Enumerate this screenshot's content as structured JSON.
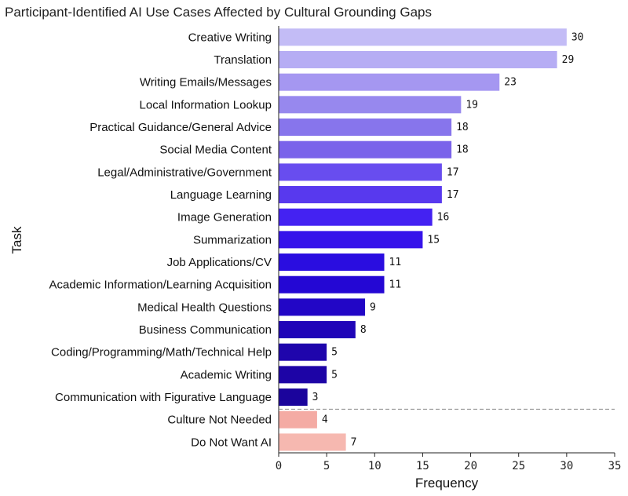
{
  "chart_data": {
    "type": "bar",
    "orientation": "horizontal",
    "title": "Participant-Identified AI Use Cases Affected by Cultural Grounding Gaps",
    "xlabel": "Frequency",
    "ylabel": "Task",
    "xlim": [
      0,
      35
    ],
    "xticks": [
      0,
      5,
      10,
      15,
      20,
      25,
      30,
      35
    ],
    "grid": false,
    "categories": [
      "Creative Writing",
      "Translation",
      "Writing Emails/Messages",
      "Local Information Lookup",
      "Practical Guidance/General Advice",
      "Social Media Content",
      "Legal/Administrative/Government",
      "Language Learning",
      "Image Generation",
      "Summarization",
      "Job Applications/CV",
      "Academic Information/Learning Acquisition",
      "Medical Health Questions",
      "Business Communication",
      "Coding/Programming/Math/Technical Help",
      "Academic Writing",
      "Communication with Figurative Language",
      "Culture Not Needed",
      "Do Not Want AI"
    ],
    "values": [
      30,
      29,
      23,
      19,
      18,
      18,
      17,
      17,
      16,
      15,
      11,
      11,
      9,
      8,
      5,
      5,
      3,
      4,
      7
    ],
    "colors": [
      "#c3bcf6",
      "#b6adf4",
      "#a597f1",
      "#9788ee",
      "#8775ec",
      "#7a63ea",
      "#684def",
      "#5839ee",
      "#4422f2",
      "#3613ea",
      "#2a0de0",
      "#2407d4",
      "#2206c6",
      "#2005b8",
      "#1f05ac",
      "#1d04a6",
      "#1b049c",
      "#f4aba4",
      "#f6b8b0"
    ],
    "separator_after_index": 16
  }
}
